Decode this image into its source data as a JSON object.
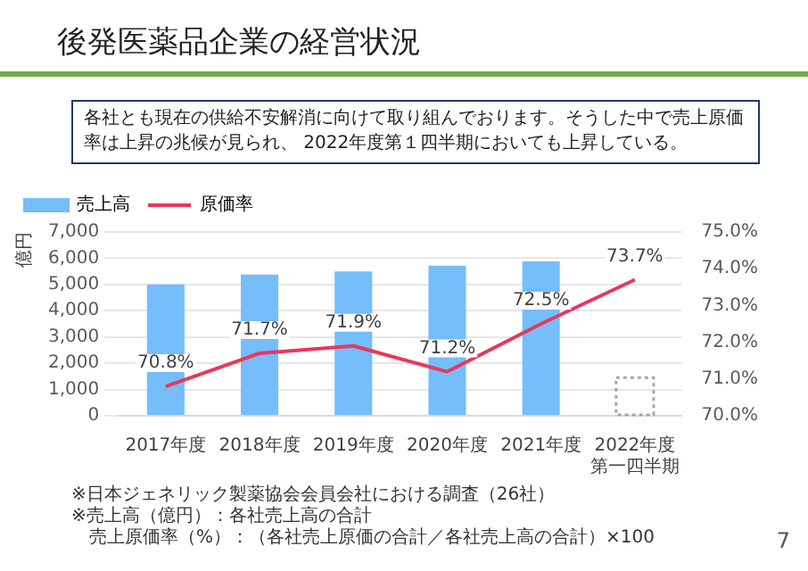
{
  "chart_data": {
    "type": "bar",
    "title": "後発医薬品企業の経営状況",
    "subtitle": "各社とも現在の供給不安解消に向けて取り組んでおります。そうした中で売上原価率は上昇の兆候が見られ、 2022年度第１四半期においても上昇している。",
    "categories": [
      "2017年度",
      "2018年度",
      "2019年度",
      "2020年度",
      "2021年度",
      "2022年度第一四半期"
    ],
    "series": [
      {
        "name": "売上高",
        "color": "#75bdfb",
        "values": [
          5000,
          5380,
          5500,
          5720,
          5880,
          null
        ]
      },
      {
        "color": "#a6a6a6",
        "line_style": "dotted",
        "values": [
          null,
          null,
          null,
          null,
          null,
          1450
        ]
      },
      {
        "name": "原価率",
        "type": "line",
        "axis": "y2",
        "color": "#e8375c",
        "values": [
          70.8,
          71.7,
          71.9,
          71.2,
          72.5,
          73.7
        ],
        "data_labels": true,
        "value_labels": [
          "70.8%",
          "71.7%",
          "71.9%",
          "71.2%",
          "72.5%",
          "73.7%"
        ]
      }
    ],
    "ylabel": "億円",
    "ylim": [
      0,
      7000
    ],
    "yticks": [
      {
        "value": 0,
        "label": "0"
      },
      {
        "value": 1000,
        "label": "1,000"
      },
      {
        "value": 2000,
        "label": "2,000"
      },
      {
        "value": 3000,
        "label": "3,000"
      },
      {
        "value": 4000,
        "label": "4,000"
      },
      {
        "value": 5000,
        "label": "5,000"
      },
      {
        "value": 6000,
        "label": "6,000"
      },
      {
        "value": 7000,
        "label": "7,000"
      }
    ],
    "y2lim": [
      70,
      75
    ],
    "y2ticks": [
      {
        "value": 70,
        "label": "70.0%"
      },
      {
        "value": 71,
        "label": "71.0%"
      },
      {
        "value": 72,
        "label": "72.0%"
      },
      {
        "value": 73,
        "label": "73.0%"
      },
      {
        "value": 74,
        "label": "74.0%"
      },
      {
        "value": 75,
        "label": "75.0%"
      }
    ],
    "grid": "y",
    "legend": "top left",
    "marker": "none",
    "annotations": [
      "※日本ジェネリック製薬協会会員会社における調査（26社）",
      "※売上高（億円）：各社売上高の合計",
      "　売上原価率（%）：（各社売上原価の合計／各社売上高の合計）×100",
      "7"
    ]
  }
}
